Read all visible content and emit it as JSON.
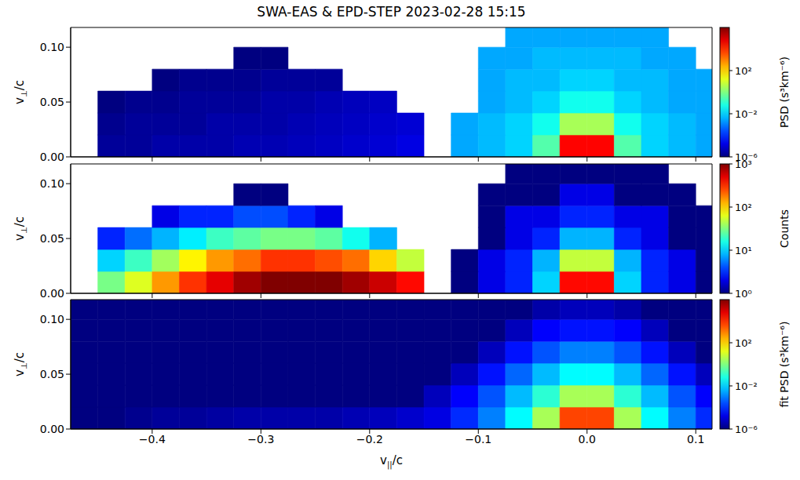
{
  "title": "SWA-EAS & EPD-STEP 2023-02-28 15:15",
  "chart_data": [
    {
      "type": "heatmap",
      "y_label": "v⊥/c",
      "tick_labels": "y",
      "xlim": [
        -0.475,
        0.115
      ],
      "ylim": [
        0,
        0.118
      ],
      "xticks": [
        {
          "value": -0.4,
          "label": "−0.4"
        },
        {
          "value": -0.3,
          "label": "−0.3"
        },
        {
          "value": -0.2,
          "label": "−0.2"
        },
        {
          "value": -0.1,
          "label": "−0.1"
        },
        {
          "value": 0,
          "label": "0.0"
        },
        {
          "value": 0.1,
          "label": "0.1"
        }
      ],
      "yticks": [
        {
          "value": 0,
          "label": "0.00"
        },
        {
          "value": 0.05,
          "label": "0.05"
        },
        {
          "value": 0.1,
          "label": "0.10"
        }
      ],
      "x_edges": [
        -0.475,
        -0.45,
        -0.425,
        -0.4,
        -0.375,
        -0.35,
        -0.325,
        -0.3,
        -0.275,
        -0.25,
        -0.225,
        -0.2,
        -0.175,
        -0.15,
        -0.125,
        -0.1,
        -0.075,
        -0.05,
        -0.025,
        0,
        0.025,
        0.05,
        0.075,
        0.1,
        0.125
      ],
      "y_edges": [
        0,
        0.02,
        0.04,
        0.06,
        0.08,
        0.1,
        0.12
      ],
      "cells": [
        [
          null,
          2e-06,
          2e-06,
          3e-06,
          3e-06,
          3e-06,
          4e-06,
          4e-06,
          5e-06,
          6e-06,
          8e-06,
          1e-05,
          1.5e-05,
          null,
          0.003,
          0.005,
          0.01,
          0.3,
          30000.0,
          30000.0,
          0.3,
          0.01,
          0.005,
          0.003
        ],
        [
          null,
          1.5e-06,
          2e-06,
          2e-06,
          2e-06,
          3e-06,
          3e-06,
          3e-06,
          4e-06,
          5e-06,
          6e-06,
          8e-06,
          1e-05,
          null,
          0.003,
          0.005,
          0.01,
          0.05,
          3,
          3,
          0.05,
          0.01,
          0.005,
          0.003
        ],
        [
          null,
          1e-06,
          1.5e-06,
          1.5e-06,
          2e-06,
          2e-06,
          2e-06,
          3e-06,
          3e-06,
          4e-06,
          5e-06,
          6e-06,
          null,
          null,
          null,
          0.003,
          0.005,
          0.01,
          0.05,
          0.05,
          0.01,
          0.005,
          0.003,
          0.003
        ],
        [
          null,
          null,
          null,
          1e-06,
          1.5e-06,
          1.5e-06,
          1.5e-06,
          2e-06,
          2e-06,
          2e-06,
          null,
          null,
          null,
          null,
          null,
          0.003,
          0.005,
          0.005,
          0.01,
          0.01,
          0.005,
          0.005,
          0.003,
          0.003
        ],
        [
          null,
          null,
          null,
          null,
          null,
          null,
          1e-06,
          1e-06,
          null,
          null,
          null,
          null,
          null,
          null,
          null,
          0.003,
          0.003,
          0.005,
          0.005,
          0.005,
          0.005,
          0.003,
          0.003,
          null
        ],
        [
          null,
          null,
          null,
          null,
          null,
          null,
          null,
          null,
          null,
          null,
          null,
          null,
          null,
          null,
          null,
          null,
          0.003,
          0.003,
          0.003,
          0.003,
          0.003,
          0.003,
          null,
          null
        ]
      ],
      "colorbar": {
        "label": "PSD (s³km⁻⁶)",
        "range": [
          1e-06,
          1000000.0
        ],
        "ticks": [
          {
            "value": 1e-06,
            "label": "10⁻⁶"
          },
          {
            "value": 0.01,
            "label": "10⁻²"
          },
          {
            "value": 100,
            "label": "10²"
          }
        ]
      }
    },
    {
      "type": "heatmap",
      "y_label": "v⊥/c",
      "tick_labels": "y",
      "xlim": [
        -0.475,
        0.115
      ],
      "ylim": [
        0,
        0.118
      ],
      "xticks": [
        {
          "value": -0.4,
          "label": "−0.4"
        },
        {
          "value": -0.3,
          "label": "−0.3"
        },
        {
          "value": -0.2,
          "label": "−0.2"
        },
        {
          "value": -0.1,
          "label": "−0.1"
        },
        {
          "value": 0,
          "label": "0.0"
        },
        {
          "value": 0.1,
          "label": "0.1"
        }
      ],
      "yticks": [
        {
          "value": 0,
          "label": "0.00"
        },
        {
          "value": 0.05,
          "label": "0.05"
        },
        {
          "value": 0.1,
          "label": "0.10"
        }
      ],
      "x_edges": [
        -0.475,
        -0.45,
        -0.425,
        -0.4,
        -0.375,
        -0.35,
        -0.325,
        -0.3,
        -0.275,
        -0.25,
        -0.225,
        -0.2,
        -0.175,
        -0.15,
        -0.125,
        -0.1,
        -0.075,
        -0.05,
        -0.025,
        0,
        0.025,
        0.05,
        0.075,
        0.1,
        0.125
      ],
      "y_edges": [
        0,
        0.02,
        0.04,
        0.06,
        0.08,
        0.1,
        0.12
      ],
      "cells": [
        [
          null,
          30,
          60,
          150,
          300,
          500,
          800,
          1000,
          1000,
          1000,
          800,
          600,
          400,
          null,
          1,
          2,
          3,
          10,
          400,
          400,
          10,
          3,
          2,
          1
        ],
        [
          null,
          10,
          20,
          40,
          80,
          150,
          200,
          300,
          300,
          250,
          200,
          100,
          50,
          null,
          1,
          2,
          3,
          8,
          50,
          50,
          8,
          3,
          2,
          1
        ],
        [
          null,
          3,
          5,
          8,
          12,
          20,
          25,
          30,
          30,
          25,
          15,
          8,
          null,
          null,
          null,
          1,
          2,
          3,
          8,
          8,
          3,
          2,
          1,
          1
        ],
        [
          null,
          null,
          null,
          2,
          3,
          3,
          4,
          4,
          3,
          2,
          null,
          null,
          null,
          null,
          null,
          1,
          2,
          2,
          3,
          3,
          2,
          2,
          1,
          1
        ],
        [
          null,
          null,
          null,
          null,
          null,
          null,
          1,
          1,
          null,
          null,
          null,
          null,
          null,
          null,
          null,
          1,
          1,
          1,
          2,
          2,
          1,
          1,
          1,
          null
        ],
        [
          null,
          null,
          null,
          null,
          null,
          null,
          null,
          null,
          null,
          null,
          null,
          null,
          null,
          null,
          null,
          null,
          1,
          1,
          1,
          1,
          1,
          1,
          null,
          null
        ]
      ],
      "colorbar": {
        "label": "Counts",
        "range": [
          1,
          1000
        ],
        "ticks": [
          {
            "value": 1,
            "label": "10⁰"
          },
          {
            "value": 10,
            "label": "10¹"
          },
          {
            "value": 100,
            "label": "10²"
          },
          {
            "value": 1000,
            "label": "10³"
          }
        ]
      }
    },
    {
      "type": "heatmap",
      "y_label": "v⊥/c",
      "x_label": "v||/c",
      "xlim": [
        -0.475,
        0.115
      ],
      "ylim": [
        0,
        0.118
      ],
      "xticks": [
        {
          "value": -0.4,
          "label": "−0.4"
        },
        {
          "value": -0.3,
          "label": "−0.3"
        },
        {
          "value": -0.2,
          "label": "−0.2"
        },
        {
          "value": -0.1,
          "label": "−0.1"
        },
        {
          "value": 0,
          "label": "0.0"
        },
        {
          "value": 0.1,
          "label": "0.1"
        }
      ],
      "yticks": [
        {
          "value": 0,
          "label": "0.00"
        },
        {
          "value": 0.05,
          "label": "0.05"
        },
        {
          "value": 0.1,
          "label": "0.10"
        }
      ],
      "x_edges": [
        -0.475,
        -0.45,
        -0.425,
        -0.4,
        -0.375,
        -0.35,
        -0.325,
        -0.3,
        -0.275,
        -0.25,
        -0.225,
        -0.2,
        -0.175,
        -0.15,
        -0.125,
        -0.1,
        -0.075,
        -0.05,
        -0.025,
        0,
        0.025,
        0.05,
        0.075,
        0.1,
        0.125
      ],
      "y_edges": [
        0,
        0.02,
        0.04,
        0.06,
        0.08,
        0.1,
        0.12
      ],
      "cells": [
        [
          1e-06,
          1e-06,
          1.5e-06,
          2e-06,
          2e-06,
          2.5e-06,
          3e-06,
          3e-06,
          3e-06,
          3e-06,
          4e-06,
          5e-06,
          8e-06,
          1.5e-05,
          0.0001,
          0.001,
          0.03,
          3,
          5000.0,
          5000.0,
          3,
          0.03,
          0.001,
          0.0001
        ],
        [
          1e-06,
          1e-06,
          1e-06,
          1e-06,
          1e-06,
          1e-06,
          1e-06,
          1e-06,
          1e-06,
          1e-06,
          1e-06,
          1e-06,
          1e-06,
          5e-06,
          3e-05,
          0.0003,
          0.005,
          0.1,
          3,
          3,
          0.1,
          0.005,
          0.0003,
          3e-05
        ],
        [
          1e-06,
          1e-06,
          1e-06,
          1e-06,
          1e-06,
          1e-06,
          1e-06,
          1e-06,
          1e-06,
          1e-06,
          1e-06,
          1e-06,
          1e-06,
          1e-06,
          5e-06,
          5e-05,
          0.0005,
          0.005,
          0.03,
          0.03,
          0.005,
          0.0005,
          5e-05,
          5e-06
        ],
        [
          1e-06,
          1e-06,
          1e-06,
          1e-06,
          1e-06,
          1e-06,
          1e-06,
          1e-06,
          1e-06,
          1e-06,
          1e-06,
          1e-06,
          1e-06,
          1e-06,
          1e-06,
          5e-06,
          5e-05,
          0.0003,
          0.001,
          0.001,
          0.0003,
          5e-05,
          5e-06,
          1e-06
        ],
        [
          1e-06,
          1e-06,
          1e-06,
          1e-06,
          1e-06,
          1e-06,
          1e-06,
          1e-06,
          1e-06,
          1e-06,
          1e-06,
          1e-06,
          1e-06,
          1e-06,
          1e-06,
          1e-06,
          5e-06,
          3e-05,
          5e-05,
          5e-05,
          3e-05,
          5e-06,
          1e-06,
          1e-06
        ],
        [
          1e-06,
          1e-06,
          1e-06,
          1e-06,
          1e-06,
          1e-06,
          1e-06,
          1e-06,
          1e-06,
          1e-06,
          1e-06,
          1e-06,
          1e-06,
          1e-06,
          1e-06,
          1e-06,
          1e-06,
          3e-06,
          5e-06,
          5e-06,
          3e-06,
          1e-06,
          1e-06,
          1e-06
        ]
      ],
      "colorbar": {
        "label": "fit PSD (s³km⁻⁶)",
        "range": [
          1e-06,
          1000000.0
        ],
        "ticks": [
          {
            "value": 1e-06,
            "label": "10⁻⁶"
          },
          {
            "value": 0.01,
            "label": "10⁻²"
          },
          {
            "value": 100,
            "label": "10²"
          }
        ]
      }
    }
  ]
}
